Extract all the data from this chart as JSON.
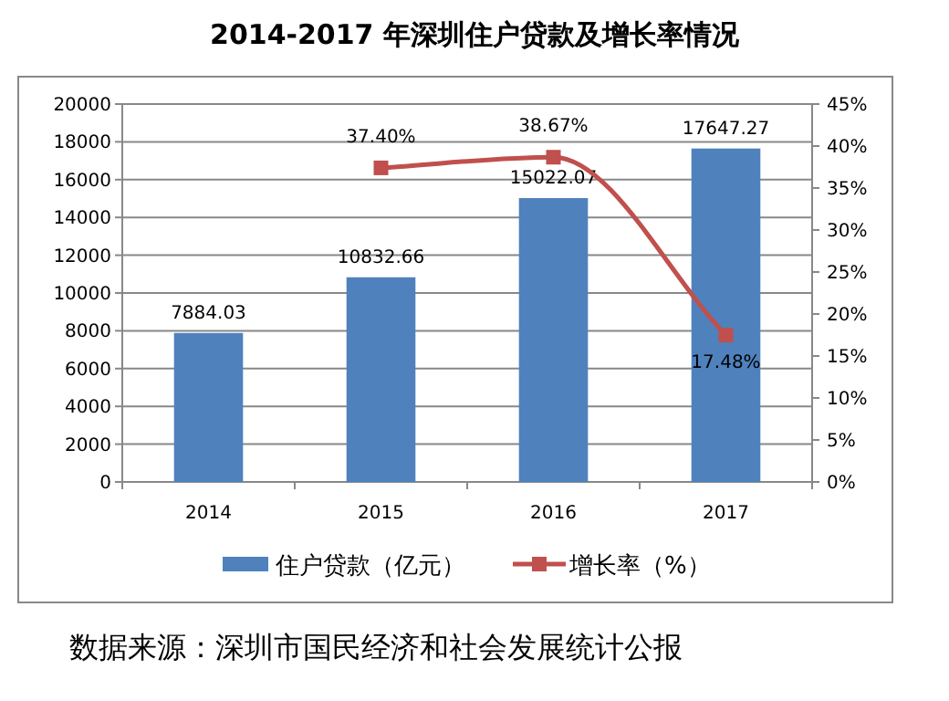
{
  "chart_data": {
    "type": "bar",
    "title": "2014-2017 年深圳住户贷款及增长率情况",
    "categories": [
      "2014",
      "2015",
      "2016",
      "2017"
    ],
    "series": [
      {
        "name": "住户贷款（亿元）",
        "color": "#4f81bd",
        "values": [
          7884.03,
          10832.66,
          15022.07,
          17647.27
        ],
        "value_labels": [
          "7884.03",
          "10832.66",
          "15022.07",
          "17647.27"
        ]
      },
      {
        "name": "增长率（%）",
        "type": "line",
        "axis": "y2",
        "color": "#c0504d",
        "marker": "square",
        "values": [
          null,
          37.4,
          38.67,
          17.48
        ],
        "value_labels": [
          null,
          "37.40%",
          "38.67%",
          "17.48%"
        ]
      }
    ],
    "ylim": [
      0,
      20000
    ],
    "yticks": [
      0,
      2000,
      4000,
      6000,
      8000,
      10000,
      12000,
      14000,
      16000,
      18000,
      20000
    ],
    "y2lim": [
      0,
      45
    ],
    "y2ticks": [
      {
        "value": 0,
        "label": "0%"
      },
      {
        "value": 5,
        "label": "5%"
      },
      {
        "value": 10,
        "label": "10%"
      },
      {
        "value": 15,
        "label": "15%"
      },
      {
        "value": 20,
        "label": "20%"
      },
      {
        "value": 25,
        "label": "25%"
      },
      {
        "value": 30,
        "label": "30%"
      },
      {
        "value": 35,
        "label": "35%"
      },
      {
        "value": 40,
        "label": "40%"
      },
      {
        "value": 45,
        "label": "45%"
      }
    ],
    "grid": "y",
    "legend": "bottom",
    "annotations": [
      "数据来源：深圳市国民经济和社会发展统计公报"
    ]
  }
}
